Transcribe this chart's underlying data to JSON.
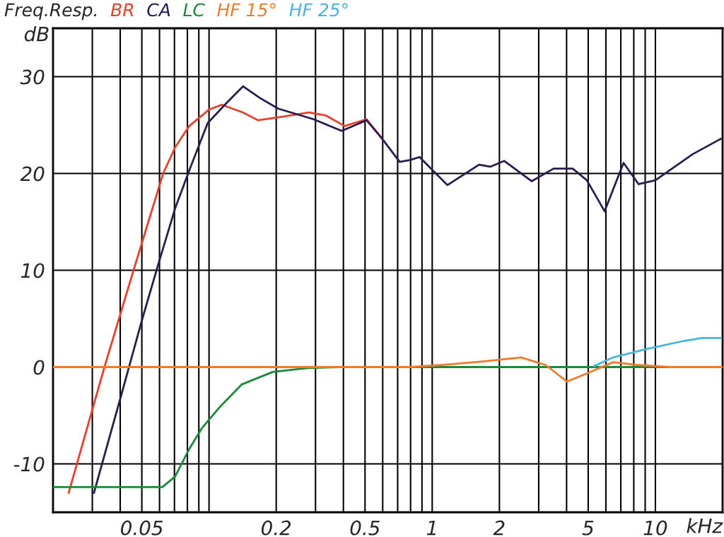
{
  "chart_data": {
    "type": "line",
    "title": "Freq.Resp.",
    "xlabel": "kHz",
    "ylabel": "dB",
    "log": "x",
    "grid": true,
    "legend": "top",
    "line_style": "solid",
    "marker": "none",
    "xlim": [
      0.02,
      20
    ],
    "ylim": [
      -15,
      35
    ],
    "xticks": [
      {
        "value": 0.03,
        "label": null
      },
      {
        "value": 0.04,
        "label": null
      },
      0.05,
      {
        "value": 0.06,
        "label": null
      },
      {
        "value": 0.07,
        "label": null
      },
      {
        "value": 0.08,
        "label": null
      },
      {
        "value": 0.09,
        "label": null
      },
      {
        "value": 0.1,
        "label": null
      },
      0.2,
      {
        "value": 0.3,
        "label": null
      },
      {
        "value": 0.4,
        "label": null
      },
      0.5,
      {
        "value": 0.6,
        "label": null
      },
      {
        "value": 0.7,
        "label": null
      },
      {
        "value": 0.8,
        "label": null
      },
      {
        "value": 0.9,
        "label": null
      },
      1,
      2,
      {
        "value": 3,
        "label": null
      },
      {
        "value": 4,
        "label": null
      },
      5,
      {
        "value": 6,
        "label": null
      },
      {
        "value": 7,
        "label": null
      },
      {
        "value": 8,
        "label": null
      },
      {
        "value": 9,
        "label": null
      },
      10
    ],
    "yticks": [
      -10,
      0,
      10,
      20,
      30
    ],
    "series": [
      {
        "name": "BR",
        "color": "#e8402a",
        "x": [
          0.0235,
          0.034,
          0.0459,
          0.0623,
          0.0705,
          0.0815,
          0.1,
          0.114,
          0.142,
          0.166,
          0.204,
          0.281,
          0.333,
          0.405,
          0.508,
          0.596
        ],
        "values": [
          -13,
          0,
          10,
          20,
          22.7,
          24.9,
          26.6,
          27.1,
          26.3,
          25.5,
          25.8,
          26.3,
          26.0,
          24.9,
          25.6,
          23.6
        ]
      },
      {
        "name": "CA",
        "color": "#2b1b4f",
        "x": [
          0.0305,
          0.0411,
          0.05,
          0.0592,
          0.0705,
          0.0815,
          0.0986,
          0.12,
          0.142,
          0.169,
          0.204,
          0.294,
          0.393,
          0.508,
          0.596,
          0.715,
          0.798,
          0.877,
          1.17,
          1.62,
          1.82,
          2.1,
          2.79,
          3.5,
          4.26,
          4.93,
          5.92,
          7.2,
          8.4,
          10,
          14.7,
          19.7
        ],
        "values": [
          -13,
          -2.3,
          4.8,
          10.6,
          16.4,
          20.3,
          25.2,
          27.3,
          29.0,
          27.8,
          26.7,
          25.6,
          24.4,
          25.5,
          23.6,
          21.2,
          21.4,
          21.7,
          18.8,
          20.9,
          20.7,
          21.3,
          19.2,
          20.5,
          20.5,
          19.3,
          16.1,
          21.1,
          18.9,
          19.3,
          22.0,
          23.6
        ]
      },
      {
        "name": "LC",
        "color": "#1a8a3a",
        "x": [
          0.02,
          0.0618,
          0.0705,
          0.0809,
          0.093,
          0.112,
          0.14,
          0.193,
          0.277,
          0.385,
          20
        ],
        "values": [
          -12.4,
          -12.4,
          -11.3,
          -8.6,
          -6.3,
          -4.1,
          -1.8,
          -0.5,
          -0.1,
          0,
          0
        ]
      },
      {
        "name": "HF 15°",
        "color": "#f07a2a",
        "x": [
          0.02,
          0.792,
          1.08,
          1.71,
          2.5,
          3.23,
          4.02,
          5.0,
          6.46,
          8.46,
          11.6,
          20
        ],
        "values": [
          0,
          0,
          0.2,
          0.6,
          1.0,
          0.2,
          -1.5,
          -0.6,
          0.5,
          0.2,
          0,
          0
        ]
      },
      {
        "name": "HF 25°",
        "color": "#4ab4e0",
        "x": [
          5.31,
          6.46,
          9.3,
          13.4,
          16.2,
          19.7
        ],
        "values": [
          0.1,
          1.0,
          1.9,
          2.7,
          3.0,
          3.0
        ]
      }
    ]
  }
}
